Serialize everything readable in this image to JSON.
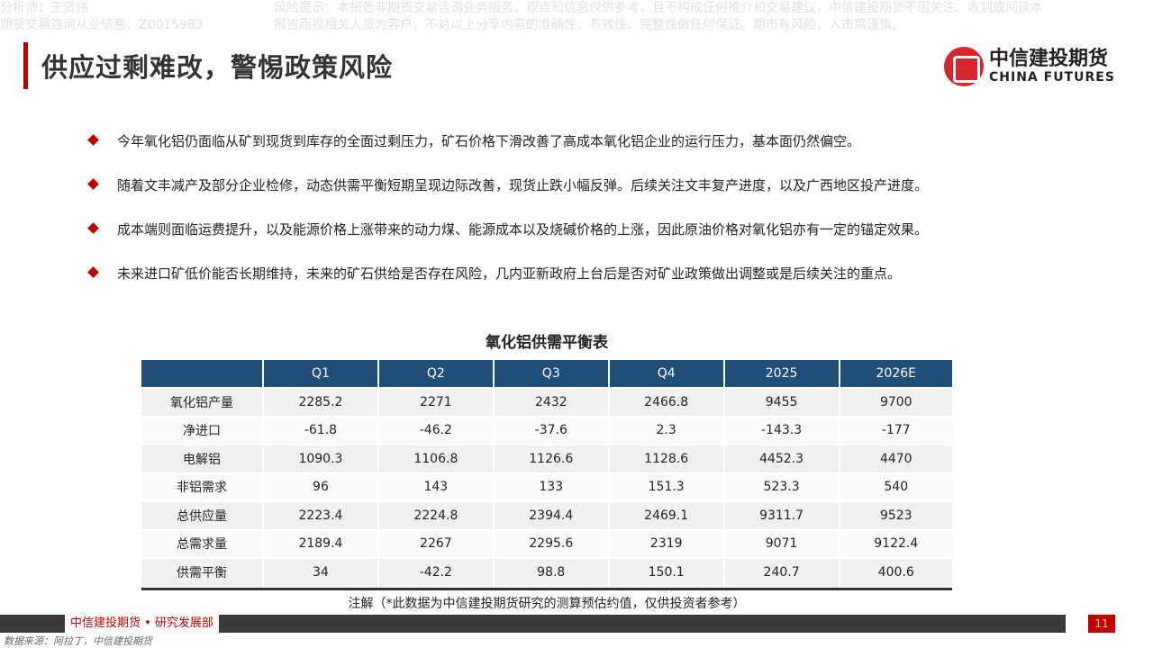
{
  "watermark": {
    "analyst": "分析师：王贤伟",
    "license": "期货交易咨询从业信息：Z0015983",
    "risk_line1": "风险提示：本报告非期货交易咨询业务服务，观点和信息仅供参考，且不构成任何推介和交易建议，中信建投期货不因关注、收到或阅读本",
    "risk_line2": "报告而视相关人员为客户，不对以上分享内容的准确性、有效性、完整性做任何保证。期市有风险，入市需谨慎。"
  },
  "title": "供应过剩难改，警惕政策风险",
  "logo": {
    "cn": "中信建投期货",
    "en": "CHINA FUTURES"
  },
  "bullets": [
    "今年氧化铝仍面临从矿到现货到库存的全面过剩压力，矿石价格下滑改善了高成本氧化铝企业的运行压力，基本面仍然偏空。",
    "随着文丰减产及部分企业检修，动态供需平衡短期呈现边际改善，现货止跌小幅反弹。后续关注文丰复产进度，以及广西地区投产进度。",
    "成本端则面临运费提升，以及能源价格上涨带来的动力煤、能源成本以及烧碱价格的上涨，因此原油价格对氧化铝亦有一定的锚定效果。",
    "未来进口矿低价能否长期维持，未来的矿石供给是否存在风险，几内亚新政府上台后是否对矿业政策做出调整或是后续关注的重点。"
  ],
  "table": {
    "title": "氧化铝供需平衡表",
    "headers": [
      "",
      "Q1",
      "Q2",
      "Q3",
      "Q4",
      "2025",
      "2026E"
    ],
    "rows": [
      [
        "氧化铝产量",
        "2285.2",
        "2271",
        "2432",
        "2466.8",
        "9455",
        "9700"
      ],
      [
        "净进口",
        "-61.8",
        "-46.2",
        "-37.6",
        "2.3",
        "-143.3",
        "-177"
      ],
      [
        "电解铝",
        "1090.3",
        "1106.8",
        "1126.6",
        "1128.6",
        "4452.3",
        "4470"
      ],
      [
        "非铝需求",
        "96",
        "143",
        "133",
        "151.3",
        "523.3",
        "540"
      ],
      [
        "总供应量",
        "2223.4",
        "2224.8",
        "2394.4",
        "2469.1",
        "9311.7",
        "9523"
      ],
      [
        "总需求量",
        "2189.4",
        "2267",
        "2295.6",
        "2319",
        "9071",
        "9122.4"
      ],
      [
        "供需平衡",
        "34",
        "-42.2",
        "98.8",
        "150.1",
        "240.7",
        "400.6"
      ]
    ]
  },
  "note": "注解（*此数据为中信建投期货研究的测算预估约值，仅供投资者参考）",
  "footer": {
    "label": "中信建投期货 • 研究发展部",
    "page": "11",
    "source": "数据来源：阿拉丁，中信建投期货"
  },
  "colors": {
    "accent": "#c00000",
    "header": "#1f4e79",
    "footbar": "#3d393a"
  }
}
